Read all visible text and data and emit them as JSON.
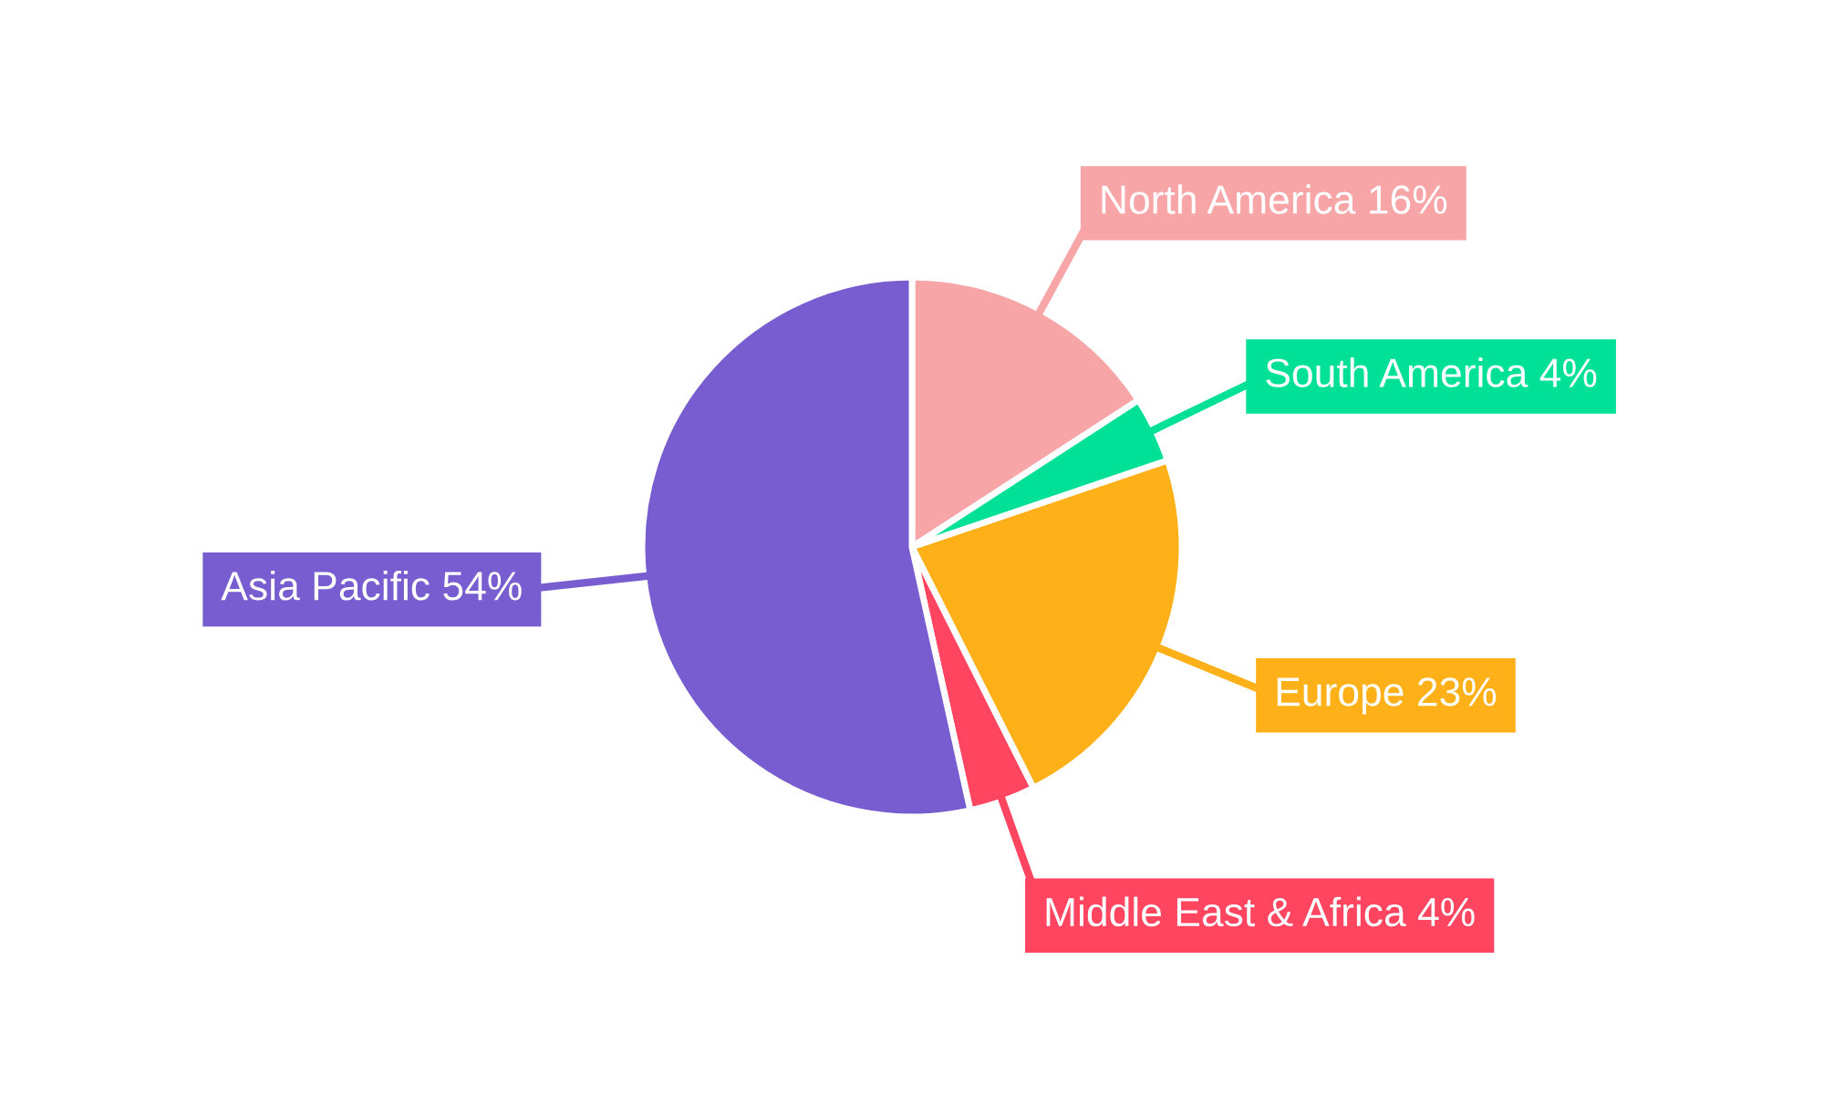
{
  "chart_data": {
    "type": "pie",
    "categories": [
      "North America",
      "South America",
      "Europe",
      "Middle East & Africa",
      "Asia Pacific"
    ],
    "values": [
      16,
      4,
      23,
      4,
      54
    ],
    "value_labels": [
      "16%",
      "4%",
      "23%",
      "4%",
      "54%"
    ],
    "colors": [
      "#f8a5a8",
      "#00e096",
      "#feb019",
      "#ff4560",
      "#775dd0"
    ],
    "legend": false
  }
}
